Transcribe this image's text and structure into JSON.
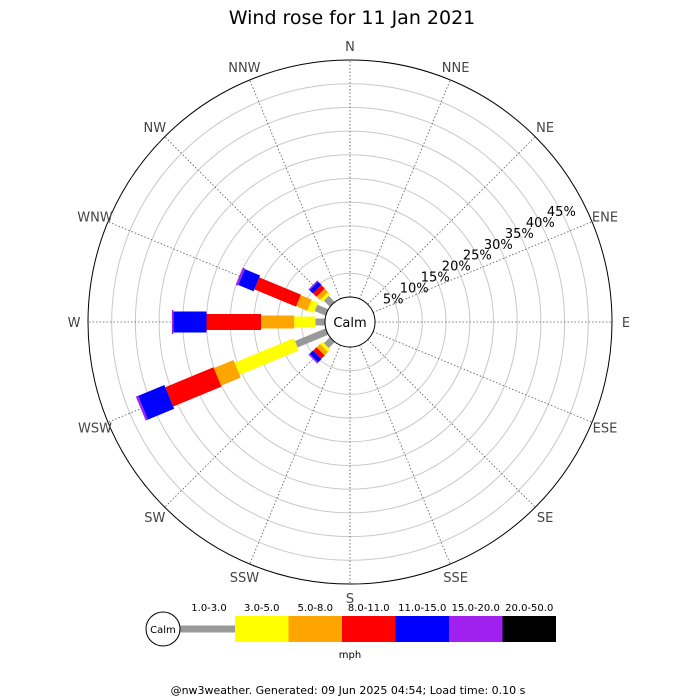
{
  "chart_data": {
    "type": "wind-rose",
    "title": "Wind rose for 11 Jan 2021",
    "center_label": "Calm",
    "unit": "mph",
    "radial_ticks": [
      "5%",
      "10%",
      "15%",
      "20%",
      "25%",
      "30%",
      "35%",
      "40%",
      "45%"
    ],
    "radial_tick_values": [
      5,
      10,
      15,
      20,
      25,
      30,
      35,
      40,
      45
    ],
    "radial_max": 50,
    "directions": [
      "N",
      "NNE",
      "NE",
      "ENE",
      "E",
      "ESE",
      "SE",
      "SSE",
      "S",
      "SSW",
      "SW",
      "WSW",
      "W",
      "WNW",
      "NW",
      "NNW"
    ],
    "direction_angles": [
      0,
      22.5,
      45,
      67.5,
      90,
      112.5,
      135,
      157.5,
      180,
      202.5,
      225,
      247.5,
      270,
      292.5,
      315,
      337.5
    ],
    "bins": [
      {
        "label": "1.0-3.0",
        "color": "#999999"
      },
      {
        "label": "3.0-5.0",
        "color": "#ffff00"
      },
      {
        "label": "5.0-8.0",
        "color": "#ffa500"
      },
      {
        "label": "8.0-11.0",
        "color": "#ff0000"
      },
      {
        "label": "11.0-15.0",
        "color": "#0000ff"
      },
      {
        "label": "15.0-20.0",
        "color": "#a020f0"
      },
      {
        "label": "20.0-50.0",
        "color": "#000000"
      }
    ],
    "series": [
      {
        "direction": "W",
        "cumulative": [
          2.0,
          6.5,
          13.5,
          25.0,
          32.0,
          32.3,
          32.3
        ]
      },
      {
        "direction": "WSW",
        "cumulative": [
          7.0,
          20.5,
          25.0,
          36.0,
          42.0,
          42.5,
          42.5
        ]
      },
      {
        "direction": "WNW",
        "cumulative": [
          2.5,
          4.0,
          6.5,
          16.0,
          19.5,
          20.0,
          20.0
        ]
      },
      {
        "direction": "NW",
        "cumulative": [
          1.8,
          2.5,
          3.5,
          4.5,
          5.5,
          5.8,
          5.8
        ]
      },
      {
        "direction": "SW",
        "cumulative": [
          1.8,
          2.5,
          3.5,
          4.5,
          5.5,
          5.8,
          5.8
        ]
      }
    ]
  },
  "footer": "@nw3weather. Generated: 09 Jun 2025 04:54; Load time: 0.10 s"
}
